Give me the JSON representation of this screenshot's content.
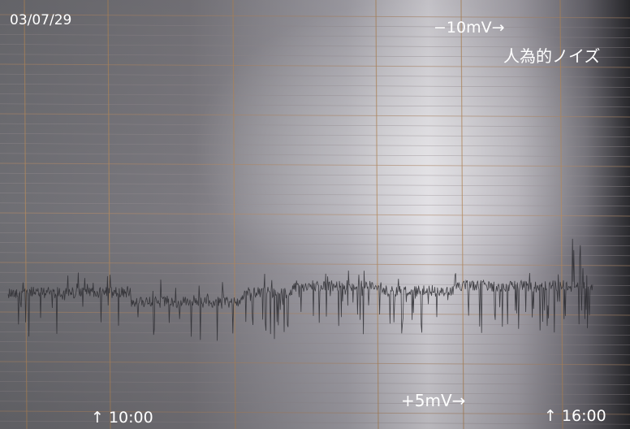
{
  "date": "03/07/29",
  "labels": {
    "top_scale": "−10mV→",
    "annotation": "人為的ノイズ",
    "bottom_scale": "+5mV→",
    "time_left": "↑ 10:00",
    "time_right": "↑ 16:00"
  }
}
